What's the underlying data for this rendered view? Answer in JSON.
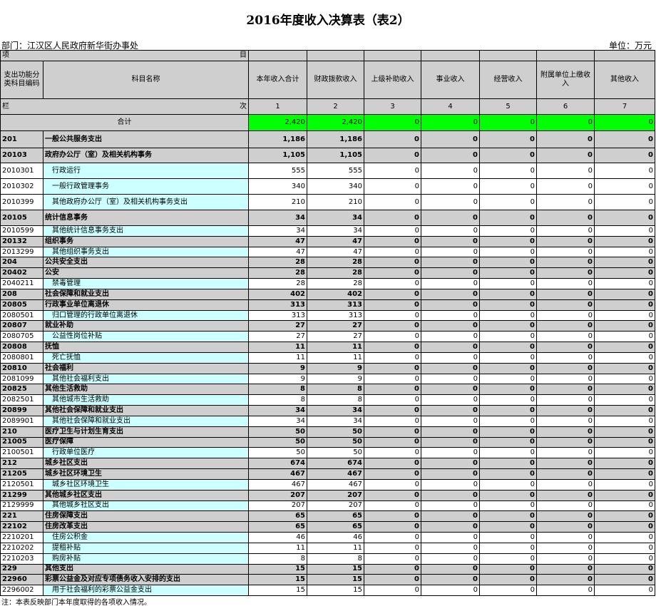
{
  "title": "2016年度收入决算表（表2）",
  "department": "部门：江汉区人民政府新华街办事处",
  "unit": "单位：万元",
  "table": {
    "header_top": [
      "项",
      "目"
    ],
    "columns": [
      "支出功能分类科目编码",
      "科目名称",
      "本年收入合计",
      "财政拨款收入",
      "上级补助收入",
      "事业收入",
      "经营收入",
      "附属单位上缴收入",
      "其他收入"
    ],
    "col_index_labels": [
      "栏",
      "次"
    ],
    "col_numbers": [
      "1",
      "2",
      "3",
      "4",
      "5",
      "6",
      "7"
    ],
    "total": {
      "label": "合计",
      "values": [
        "2,420",
        "2,420",
        "0",
        "0",
        "0",
        "0",
        "0"
      ]
    },
    "rows": [
      [
        "201",
        "一般公共服务支出",
        "1,186",
        "1,186",
        "0",
        "0",
        "0",
        "0",
        "0"
      ],
      [
        "20103",
        "政府办公厅（室）及相关机构事务",
        "1,105",
        "1,105",
        "0",
        "0",
        "0",
        "0",
        "0"
      ],
      [
        "2010301",
        "行政运行",
        "555",
        "555",
        "0",
        "0",
        "0",
        "0",
        "0"
      ],
      [
        "2010302",
        "一般行政管理事务",
        "340",
        "340",
        "0",
        "0",
        "0",
        "0",
        "0"
      ],
      [
        "2010399",
        "其他政府办公厅（室）及相关机构事务支出",
        "210",
        "210",
        "0",
        "0",
        "0",
        "0",
        "0"
      ],
      [
        "20105",
        "统计信息事务",
        "34",
        "34",
        "0",
        "0",
        "0",
        "0",
        "0"
      ],
      [
        "2010599",
        "其他统计信息事务支出",
        "34",
        "34",
        "0",
        "0",
        "0",
        "0",
        "0"
      ],
      [
        "20132",
        "组织事务",
        "47",
        "47",
        "0",
        "0",
        "0",
        "0",
        "0"
      ],
      [
        "2013299",
        "其他组织事务支出",
        "47",
        "47",
        "0",
        "0",
        "0",
        "0",
        "0"
      ],
      [
        "204",
        "公共安全支出",
        "28",
        "28",
        "0",
        "0",
        "0",
        "0",
        "0"
      ],
      [
        "20402",
        "公安",
        "28",
        "28",
        "0",
        "0",
        "0",
        "0",
        "0"
      ],
      [
        "2040211",
        "禁毒管理",
        "28",
        "28",
        "0",
        "0",
        "0",
        "0",
        "0"
      ],
      [
        "208",
        "社会保障和就业支出",
        "402",
        "402",
        "0",
        "0",
        "0",
        "0",
        "0"
      ],
      [
        "20805",
        "行政事业单位离退休",
        "313",
        "313",
        "0",
        "0",
        "0",
        "0",
        "0"
      ],
      [
        "2080501",
        "归口管理的行政单位离退休",
        "313",
        "313",
        "0",
        "0",
        "0",
        "0",
        "0"
      ],
      [
        "20807",
        "就业补助",
        "27",
        "27",
        "0",
        "0",
        "0",
        "0",
        "0"
      ],
      [
        "2080705",
        "公益性岗位补贴",
        "27",
        "27",
        "0",
        "0",
        "0",
        "0",
        "0"
      ],
      [
        "20808",
        "抚恤",
        "11",
        "11",
        "0",
        "0",
        "0",
        "0",
        "0"
      ],
      [
        "2080801",
        "死亡抚恤",
        "11",
        "11",
        "0",
        "0",
        "0",
        "0",
        "0"
      ],
      [
        "20810",
        "社会福利",
        "9",
        "9",
        "0",
        "0",
        "0",
        "0",
        "0"
      ],
      [
        "2081099",
        "其他社会福利支出",
        "9",
        "9",
        "0",
        "0",
        "0",
        "0",
        "0"
      ],
      [
        "20825",
        "其他生活救助",
        "8",
        "8",
        "0",
        "0",
        "0",
        "0",
        "0"
      ],
      [
        "2082501",
        "其他城市生活救助",
        "8",
        "8",
        "0",
        "0",
        "0",
        "0",
        "0"
      ],
      [
        "20899",
        "其他社会保障和就业支出",
        "34",
        "34",
        "0",
        "0",
        "0",
        "0",
        "0"
      ],
      [
        "2089901",
        "其他社会保障和就业支出",
        "34",
        "34",
        "0",
        "0",
        "0",
        "0",
        "0"
      ],
      [
        "210",
        "医疗卫生与计划生育支出",
        "50",
        "50",
        "0",
        "0",
        "0",
        "0",
        "0"
      ],
      [
        "21005",
        "医疗保障",
        "50",
        "50",
        "0",
        "0",
        "0",
        "0",
        "0"
      ],
      [
        "2100501",
        "行政单位医疗",
        "50",
        "50",
        "0",
        "0",
        "0",
        "0",
        "0"
      ],
      [
        "212",
        "城乡社区支出",
        "674",
        "674",
        "0",
        "0",
        "0",
        "0",
        "0"
      ],
      [
        "21205",
        "城乡社区环境卫生",
        "467",
        "467",
        "0",
        "0",
        "0",
        "0",
        "0"
      ],
      [
        "2120501",
        "城乡社区环境卫生",
        "467",
        "467",
        "0",
        "0",
        "0",
        "0",
        "0"
      ],
      [
        "21299",
        "其他城乡社区支出",
        "207",
        "207",
        "0",
        "0",
        "0",
        "0",
        "0"
      ],
      [
        "2129999",
        "其他城乡社区支出",
        "207",
        "207",
        "0",
        "0",
        "0",
        "0",
        "0"
      ],
      [
        "221",
        "住房保障支出",
        "65",
        "65",
        "0",
        "0",
        "0",
        "0",
        "0"
      ],
      [
        "22102",
        "住房改革支出",
        "65",
        "65",
        "0",
        "0",
        "0",
        "0",
        "0"
      ],
      [
        "2210201",
        "住房公积金",
        "46",
        "46",
        "0",
        "0",
        "0",
        "0",
        "0"
      ],
      [
        "2210202",
        "提租补贴",
        "11",
        "11",
        "0",
        "0",
        "0",
        "0",
        "0"
      ],
      [
        "2210203",
        "购房补贴",
        "8",
        "8",
        "0",
        "0",
        "0",
        "0",
        "0"
      ],
      [
        "229",
        "其他支出",
        "15",
        "15",
        "0",
        "0",
        "0",
        "0",
        "0"
      ],
      [
        "22960",
        "彩票公益金及对应专项债务收入安排的支出",
        "15",
        "15",
        "0",
        "0",
        "0",
        "0",
        "0"
      ],
      [
        "2296002",
        "用于社会福利的彩票公益金支出",
        "15",
        "15",
        "0",
        "0",
        "0",
        "0",
        "0"
      ]
    ]
  },
  "note": "注：本表反映部门本年度取得的各项收入情况。"
}
